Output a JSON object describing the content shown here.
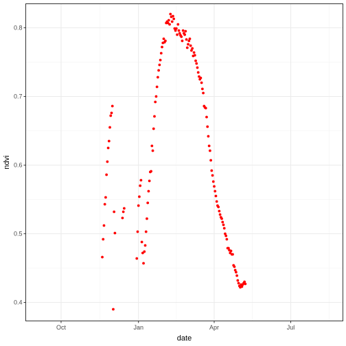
{
  "chart_data": {
    "type": "scatter",
    "xlabel": "date",
    "ylabel": "ndvi",
    "x_scale": "date",
    "xlim": [
      "2017-08-20",
      "2018-09-01"
    ],
    "ylim": [
      0.373,
      0.835
    ],
    "x_ticks": [
      {
        "value": "2017-10-01",
        "label": "Oct"
      },
      {
        "value": "2018-01-01",
        "label": "Jan"
      },
      {
        "value": "2018-04-01",
        "label": "Apr"
      },
      {
        "value": "2018-07-01",
        "label": "Jul"
      }
    ],
    "y_ticks": [
      {
        "value": 0.4,
        "label": "0.4"
      },
      {
        "value": 0.5,
        "label": "0.5"
      },
      {
        "value": 0.6,
        "label": "0.6"
      },
      {
        "value": 0.7,
        "label": "0.7"
      },
      {
        "value": 0.8,
        "label": "0.8"
      }
    ],
    "grid": true,
    "legend": "none",
    "point_color": "#ff0000",
    "series": [
      {
        "points": [
          [
            "2017-11-19",
            0.466
          ],
          [
            "2017-11-20",
            0.492
          ],
          [
            "2017-11-21",
            0.512
          ],
          [
            "2017-11-22",
            0.543
          ],
          [
            "2017-11-23",
            0.553
          ],
          [
            "2017-11-24",
            0.586
          ],
          [
            "2017-11-25",
            0.605
          ],
          [
            "2017-11-26",
            0.625
          ],
          [
            "2017-11-27",
            0.635
          ],
          [
            "2017-11-28",
            0.655
          ],
          [
            "2017-11-29",
            0.672
          ],
          [
            "2017-11-30",
            0.676
          ],
          [
            "2017-12-01",
            0.686
          ],
          [
            "2017-12-02",
            0.39
          ],
          [
            "2017-12-03",
            0.532
          ],
          [
            "2017-12-04",
            0.501
          ],
          [
            "2017-12-13",
            0.523
          ],
          [
            "2017-12-14",
            0.532
          ],
          [
            "2017-12-15",
            0.537
          ],
          [
            "2017-12-30",
            0.464
          ],
          [
            "2017-12-31",
            0.503
          ],
          [
            "2018-01-01",
            0.541
          ],
          [
            "2018-01-02",
            0.554
          ],
          [
            "2018-01-03",
            0.57
          ],
          [
            "2018-01-04",
            0.578
          ],
          [
            "2018-01-05",
            0.488
          ],
          [
            "2018-01-06",
            0.472
          ],
          [
            "2018-01-07",
            0.457
          ],
          [
            "2018-01-08",
            0.474
          ],
          [
            "2018-01-09",
            0.483
          ],
          [
            "2018-01-10",
            0.503
          ],
          [
            "2018-01-11",
            0.522
          ],
          [
            "2018-01-12",
            0.545
          ],
          [
            "2018-01-13",
            0.562
          ],
          [
            "2018-01-14",
            0.577
          ],
          [
            "2018-01-15",
            0.59
          ],
          [
            "2018-01-16",
            0.591
          ],
          [
            "2018-01-17",
            0.628
          ],
          [
            "2018-01-18",
            0.621
          ],
          [
            "2018-01-19",
            0.653
          ],
          [
            "2018-01-20",
            0.671
          ],
          [
            "2018-01-21",
            0.692
          ],
          [
            "2018-01-22",
            0.7
          ],
          [
            "2018-01-23",
            0.714
          ],
          [
            "2018-01-24",
            0.728
          ],
          [
            "2018-01-25",
            0.738
          ],
          [
            "2018-01-26",
            0.746
          ],
          [
            "2018-01-27",
            0.753
          ],
          [
            "2018-01-28",
            0.763
          ],
          [
            "2018-01-29",
            0.772
          ],
          [
            "2018-01-30",
            0.778
          ],
          [
            "2018-01-31",
            0.784
          ],
          [
            "2018-02-01",
            0.779
          ],
          [
            "2018-02-02",
            0.781
          ],
          [
            "2018-02-03",
            0.807
          ],
          [
            "2018-02-04",
            0.809
          ],
          [
            "2018-02-05",
            0.807
          ],
          [
            "2018-02-06",
            0.811
          ],
          [
            "2018-02-07",
            0.805
          ],
          [
            "2018-02-08",
            0.82
          ],
          [
            "2018-02-09",
            0.816
          ],
          [
            "2018-02-10",
            0.809
          ],
          [
            "2018-02-11",
            0.817
          ],
          [
            "2018-02-12",
            0.813
          ],
          [
            "2018-02-13",
            0.799
          ],
          [
            "2018-02-14",
            0.796
          ],
          [
            "2018-02-15",
            0.799
          ],
          [
            "2018-02-16",
            0.79
          ],
          [
            "2018-02-17",
            0.805
          ],
          [
            "2018-02-18",
            0.796
          ],
          [
            "2018-02-19",
            0.792
          ],
          [
            "2018-02-20",
            0.789
          ],
          [
            "2018-02-21",
            0.787
          ],
          [
            "2018-02-22",
            0.781
          ],
          [
            "2018-02-23",
            0.796
          ],
          [
            "2018-02-24",
            0.792
          ],
          [
            "2018-02-25",
            0.79
          ],
          [
            "2018-02-26",
            0.795
          ],
          [
            "2018-02-27",
            0.783
          ],
          [
            "2018-02-28",
            0.771
          ],
          [
            "2018-03-01",
            0.776
          ],
          [
            "2018-03-02",
            0.781
          ],
          [
            "2018-03-03",
            0.784
          ],
          [
            "2018-03-04",
            0.774
          ],
          [
            "2018-03-05",
            0.767
          ],
          [
            "2018-03-06",
            0.77
          ],
          [
            "2018-03-07",
            0.759
          ],
          [
            "2018-03-08",
            0.764
          ],
          [
            "2018-03-09",
            0.76
          ],
          [
            "2018-03-10",
            0.752
          ],
          [
            "2018-03-11",
            0.748
          ],
          [
            "2018-03-12",
            0.742
          ],
          [
            "2018-03-13",
            0.735
          ],
          [
            "2018-03-14",
            0.729
          ],
          [
            "2018-03-15",
            0.725
          ],
          [
            "2018-03-16",
            0.727
          ],
          [
            "2018-03-17",
            0.72
          ],
          [
            "2018-03-18",
            0.711
          ],
          [
            "2018-03-19",
            0.705
          ],
          [
            "2018-03-20",
            0.686
          ],
          [
            "2018-03-21",
            0.684
          ],
          [
            "2018-03-22",
            0.683
          ],
          [
            "2018-03-23",
            0.67
          ],
          [
            "2018-03-24",
            0.656
          ],
          [
            "2018-03-25",
            0.642
          ],
          [
            "2018-03-26",
            0.628
          ],
          [
            "2018-03-27",
            0.621
          ],
          [
            "2018-03-28",
            0.607
          ],
          [
            "2018-03-29",
            0.592
          ],
          [
            "2018-03-30",
            0.585
          ],
          [
            "2018-03-31",
            0.576
          ],
          [
            "2018-04-01",
            0.569
          ],
          [
            "2018-04-02",
            0.562
          ],
          [
            "2018-04-03",
            0.555
          ],
          [
            "2018-04-04",
            0.547
          ],
          [
            "2018-04-05",
            0.541
          ],
          [
            "2018-04-06",
            0.539
          ],
          [
            "2018-04-07",
            0.533
          ],
          [
            "2018-04-08",
            0.528
          ],
          [
            "2018-04-09",
            0.524
          ],
          [
            "2018-04-10",
            0.522
          ],
          [
            "2018-04-11",
            0.517
          ],
          [
            "2018-04-12",
            0.513
          ],
          [
            "2018-04-13",
            0.508
          ],
          [
            "2018-04-14",
            0.5
          ],
          [
            "2018-04-15",
            0.497
          ],
          [
            "2018-04-16",
            0.492
          ],
          [
            "2018-04-17",
            0.479
          ],
          [
            "2018-04-18",
            0.479
          ],
          [
            "2018-04-19",
            0.476
          ],
          [
            "2018-04-20",
            0.472
          ],
          [
            "2018-04-21",
            0.475
          ],
          [
            "2018-04-22",
            0.47
          ],
          [
            "2018-04-23",
            0.47
          ],
          [
            "2018-04-24",
            0.454
          ],
          [
            "2018-04-25",
            0.452
          ],
          [
            "2018-04-26",
            0.447
          ],
          [
            "2018-04-27",
            0.444
          ],
          [
            "2018-04-28",
            0.439
          ],
          [
            "2018-04-29",
            0.432
          ],
          [
            "2018-04-30",
            0.428
          ],
          [
            "2018-05-01",
            0.424
          ],
          [
            "2018-05-02",
            0.422
          ],
          [
            "2018-05-03",
            0.426
          ],
          [
            "2018-05-04",
            0.423
          ],
          [
            "2018-05-05",
            0.426
          ],
          [
            "2018-05-06",
            0.428
          ],
          [
            "2018-05-07",
            0.43
          ],
          [
            "2018-05-08",
            0.427
          ]
        ]
      }
    ]
  }
}
